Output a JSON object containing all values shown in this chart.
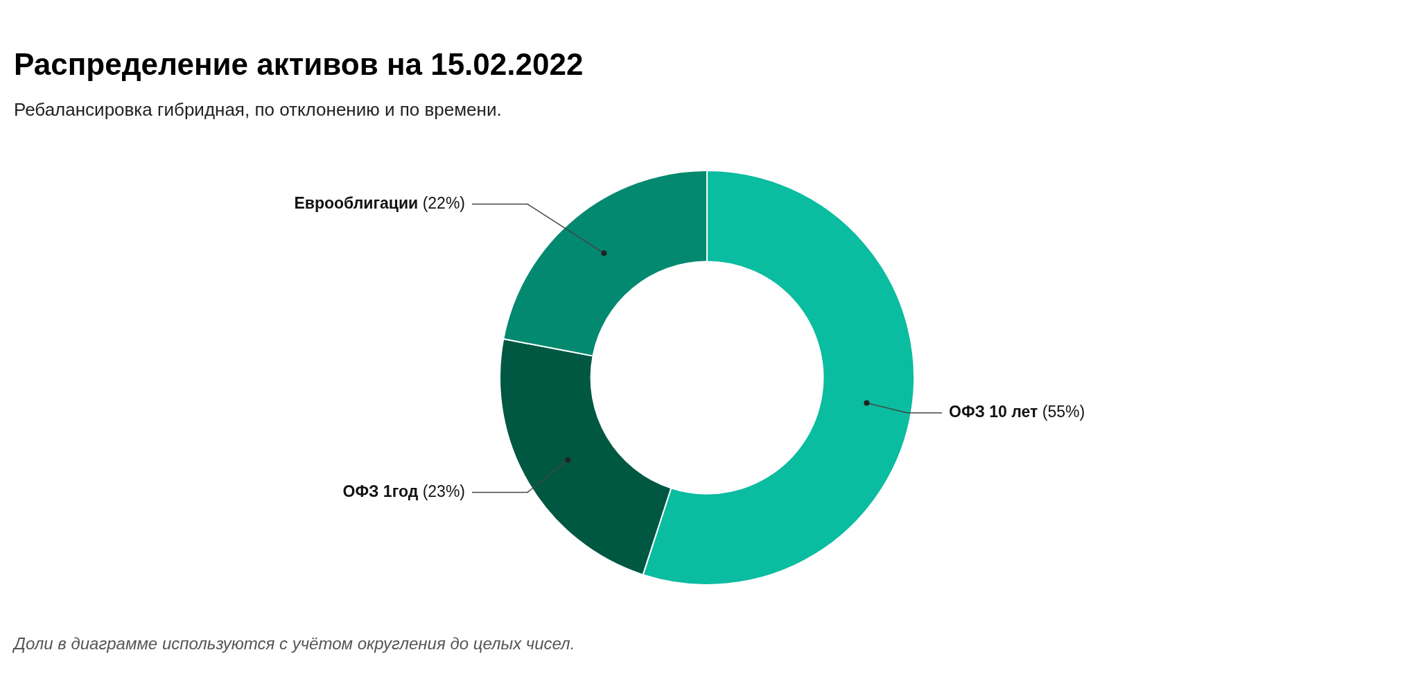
{
  "chart_data": {
    "type": "donut",
    "title": "Распределение активов на 15.02.2022",
    "subtitle": "Ребалансировка гибридная, по отклонению и по времени.",
    "categories": [
      "ОФЗ 10 лет",
      "ОФЗ 1год",
      "Еврооблигации"
    ],
    "values": [
      55,
      23,
      22
    ],
    "colors": [
      "#0abca0",
      "#005842",
      "#02896f"
    ],
    "value_labels": [
      "(55%)",
      "(23%)",
      "(22%)"
    ],
    "annotations": [
      "Доли в диаграмме используются с учётом округления до целых чисел."
    ]
  }
}
